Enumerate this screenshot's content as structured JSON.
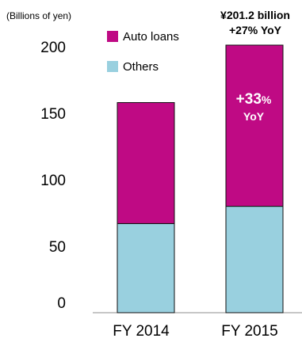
{
  "chart_data": {
    "type": "bar",
    "stacked": true,
    "unit_label": "(Billions of yen)",
    "categories": [
      "FY 2014",
      "FY 2015"
    ],
    "series": [
      {
        "name": "Others",
        "color": "#99d0df",
        "values": [
          67,
          80
        ]
      },
      {
        "name": "Auto loans",
        "color": "#bf0a84",
        "values": [
          91,
          121.2
        ]
      }
    ],
    "ylim": [
      0,
      200
    ],
    "yticks": [
      "0",
      "50",
      "100",
      "150",
      "200"
    ],
    "grid": false,
    "legend_position": "top-left",
    "annotations": {
      "total_line1": "¥201.2 billion",
      "total_line2": "+27% YoY",
      "auto_growth_value": "+33",
      "auto_growth_unit": "%",
      "auto_growth_suffix": "YoY"
    }
  }
}
